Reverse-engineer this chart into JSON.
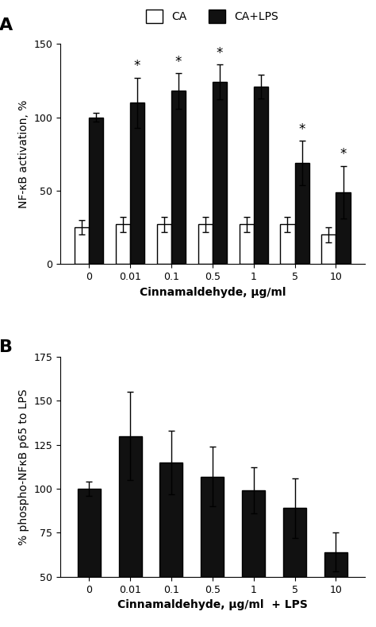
{
  "panel_A": {
    "categories": [
      "0",
      "0.01",
      "0.1",
      "0.5",
      "1",
      "5",
      "10"
    ],
    "CA_values": [
      25,
      27,
      27,
      27,
      27,
      27,
      20
    ],
    "CA_errors": [
      5,
      5,
      5,
      5,
      5,
      5,
      5
    ],
    "CA_LPS_values": [
      100,
      110,
      118,
      124,
      121,
      69,
      49
    ],
    "CA_LPS_errors": [
      3,
      17,
      12,
      12,
      8,
      15,
      18
    ],
    "significant": [
      false,
      true,
      true,
      true,
      false,
      true,
      true
    ],
    "ylabel": "NF-κB activation, %",
    "xlabel": "Cinnamaldehyde, μg/ml",
    "ylim": [
      0,
      150
    ],
    "yticks": [
      0,
      50,
      100,
      150
    ],
    "panel_label": "A"
  },
  "panel_B": {
    "categories": [
      "0",
      "0.01",
      "0.1",
      "0.5",
      "1",
      "5",
      "10"
    ],
    "values": [
      100,
      130,
      115,
      107,
      99,
      89,
      64
    ],
    "errors": [
      4,
      25,
      18,
      17,
      13,
      17,
      11
    ],
    "ylabel": "% phospho-NFκB p65 to LPS",
    "xlabel": "Cinnamaldehyde, μg/ml  + LPS",
    "ylim": [
      50,
      175
    ],
    "yticks": [
      50,
      75,
      100,
      125,
      150,
      175
    ],
    "panel_label": "B"
  },
  "bar_width": 0.35,
  "ca_color": "#ffffff",
  "ca_lps_color": "#111111",
  "edge_color": "#000000",
  "fontsize_label": 10,
  "fontsize_tick": 9,
  "fontsize_panel": 16,
  "fontsize_legend": 10,
  "fontsize_star": 12
}
